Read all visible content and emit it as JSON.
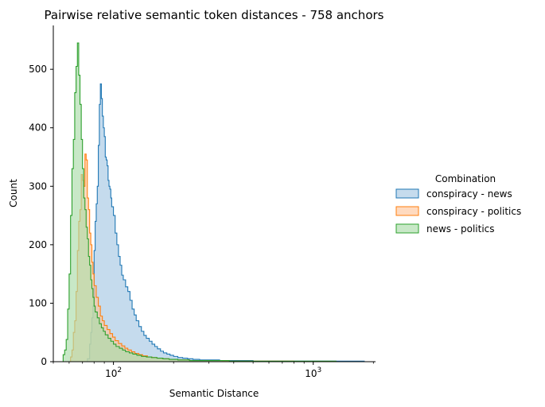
{
  "chart_data": {
    "type": "histogram",
    "title": "Pairwise relative semantic token distances - 758 anchors",
    "xlabel": "Semantic Distance",
    "ylabel": "Count",
    "xscale": "log",
    "xlim": [
      50,
      2050
    ],
    "ylim": [
      0,
      575
    ],
    "y_ticks": [
      0,
      100,
      200,
      300,
      400,
      500
    ],
    "x_ticks": [
      {
        "value": 100,
        "base": "10",
        "exp": "2"
      },
      {
        "value": 1000,
        "base": "10",
        "exp": "3"
      }
    ],
    "legend": {
      "title": "Combination",
      "placement": "center-right"
    },
    "series": [
      {
        "name": "conspiracy - news",
        "color": "#1f77b4",
        "fill": "#a6c8e4",
        "bins": [
          [
            72,
            0
          ],
          [
            74,
            5
          ],
          [
            76,
            30
          ],
          [
            77,
            50
          ],
          [
            78,
            75
          ],
          [
            79,
            95
          ],
          [
            80,
            190
          ],
          [
            81,
            240
          ],
          [
            82,
            270
          ],
          [
            83,
            300
          ],
          [
            84,
            370
          ],
          [
            85,
            440
          ],
          [
            86,
            475
          ],
          [
            87,
            450
          ],
          [
            88,
            420
          ],
          [
            89,
            400
          ],
          [
            90,
            385
          ],
          [
            91,
            350
          ],
          [
            92,
            345
          ],
          [
            93,
            335
          ],
          [
            94,
            310
          ],
          [
            95,
            300
          ],
          [
            96,
            295
          ],
          [
            97,
            280
          ],
          [
            98,
            265
          ],
          [
            100,
            250
          ],
          [
            102,
            220
          ],
          [
            104,
            200
          ],
          [
            106,
            180
          ],
          [
            108,
            165
          ],
          [
            110,
            148
          ],
          [
            112,
            140
          ],
          [
            115,
            128
          ],
          [
            118,
            120
          ],
          [
            121,
            105
          ],
          [
            124,
            90
          ],
          [
            127,
            80
          ],
          [
            130,
            70
          ],
          [
            134,
            60
          ],
          [
            138,
            52
          ],
          [
            142,
            45
          ],
          [
            146,
            40
          ],
          [
            151,
            35
          ],
          [
            156,
            30
          ],
          [
            161,
            26
          ],
          [
            166,
            22
          ],
          [
            172,
            18
          ],
          [
            178,
            15
          ],
          [
            185,
            13
          ],
          [
            192,
            11
          ],
          [
            200,
            9
          ],
          [
            210,
            7
          ],
          [
            222,
            6
          ],
          [
            235,
            5
          ],
          [
            250,
            4
          ],
          [
            270,
            3
          ],
          [
            300,
            3
          ],
          [
            340,
            2
          ],
          [
            400,
            2
          ],
          [
            500,
            1
          ],
          [
            650,
            1
          ],
          [
            900,
            1
          ],
          [
            1300,
            1
          ],
          [
            1800,
            0
          ]
        ]
      },
      {
        "name": "conspiracy - politics",
        "color": "#ff7f0e",
        "fill": "#ffc69c",
        "bins": [
          [
            60,
            0
          ],
          [
            61,
            8
          ],
          [
            62,
            20
          ],
          [
            63,
            50
          ],
          [
            64,
            70
          ],
          [
            65,
            120
          ],
          [
            66,
            190
          ],
          [
            67,
            240
          ],
          [
            68,
            260
          ],
          [
            69,
            320
          ],
          [
            70,
            310
          ],
          [
            71,
            300
          ],
          [
            72,
            355
          ],
          [
            73,
            345
          ],
          [
            74,
            280
          ],
          [
            75,
            260
          ],
          [
            76,
            220
          ],
          [
            77,
            200
          ],
          [
            78,
            170
          ],
          [
            79,
            150
          ],
          [
            80,
            130
          ],
          [
            82,
            110
          ],
          [
            84,
            95
          ],
          [
            86,
            78
          ],
          [
            88,
            70
          ],
          [
            90,
            62
          ],
          [
            93,
            55
          ],
          [
            96,
            48
          ],
          [
            99,
            42
          ],
          [
            102,
            36
          ],
          [
            106,
            31
          ],
          [
            110,
            27
          ],
          [
            114,
            23
          ],
          [
            118,
            20
          ],
          [
            123,
            17
          ],
          [
            128,
            14
          ],
          [
            134,
            12
          ],
          [
            140,
            10
          ],
          [
            148,
            8
          ],
          [
            156,
            7
          ],
          [
            165,
            6
          ],
          [
            175,
            5
          ],
          [
            190,
            4
          ],
          [
            210,
            3
          ],
          [
            240,
            2
          ],
          [
            280,
            2
          ],
          [
            350,
            1
          ],
          [
            500,
            1
          ],
          [
            800,
            0
          ]
        ]
      },
      {
        "name": "news - politics",
        "color": "#2ca02c",
        "fill": "#aadba9",
        "bins": [
          [
            55,
            0
          ],
          [
            56,
            12
          ],
          [
            57,
            20
          ],
          [
            58,
            38
          ],
          [
            59,
            90
          ],
          [
            60,
            150
          ],
          [
            61,
            250
          ],
          [
            62,
            330
          ],
          [
            63,
            380
          ],
          [
            64,
            460
          ],
          [
            65,
            505
          ],
          [
            66,
            545
          ],
          [
            67,
            490
          ],
          [
            68,
            440
          ],
          [
            69,
            380
          ],
          [
            70,
            330
          ],
          [
            71,
            280
          ],
          [
            72,
            260
          ],
          [
            73,
            230
          ],
          [
            74,
            210
          ],
          [
            75,
            180
          ],
          [
            76,
            165
          ],
          [
            77,
            140
          ],
          [
            78,
            125
          ],
          [
            79,
            110
          ],
          [
            80,
            95
          ],
          [
            81,
            85
          ],
          [
            83,
            75
          ],
          [
            85,
            65
          ],
          [
            87,
            58
          ],
          [
            89,
            52
          ],
          [
            91,
            46
          ],
          [
            94,
            40
          ],
          [
            97,
            35
          ],
          [
            100,
            30
          ],
          [
            103,
            26
          ],
          [
            107,
            23
          ],
          [
            111,
            20
          ],
          [
            115,
            17
          ],
          [
            120,
            15
          ],
          [
            125,
            13
          ],
          [
            131,
            11
          ],
          [
            138,
            9
          ],
          [
            146,
            8
          ],
          [
            155,
            7
          ],
          [
            165,
            6
          ],
          [
            177,
            5
          ],
          [
            190,
            4
          ],
          [
            210,
            3
          ],
          [
            240,
            2
          ],
          [
            290,
            2
          ],
          [
            380,
            1
          ],
          [
            550,
            1
          ],
          [
            850,
            1
          ],
          [
            1300,
            0
          ]
        ]
      }
    ]
  }
}
